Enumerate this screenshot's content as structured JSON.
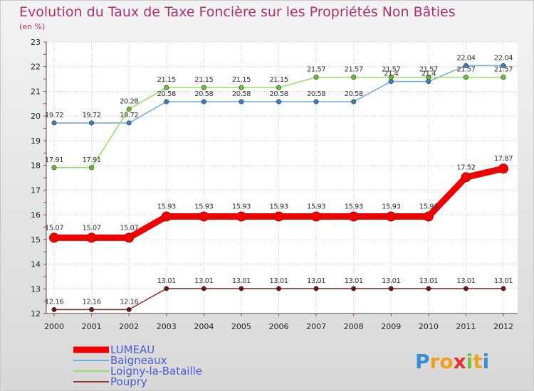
{
  "chart_data": {
    "type": "line",
    "title": "Evolution du Taux de Taxe Foncière sur les Propriétés Non Bâties",
    "subtitle": "(en %)",
    "xlabel": "",
    "ylabel": "",
    "x": [
      "2000",
      "2001",
      "2002",
      "2003",
      "2004",
      "2005",
      "2006",
      "2007",
      "2008",
      "2009",
      "2010",
      "2011",
      "2012"
    ],
    "yticks": [
      12,
      13,
      14,
      15,
      16,
      17,
      18,
      19,
      20,
      21,
      22,
      23
    ],
    "ylim": [
      12,
      23
    ],
    "grid": true,
    "legend_position": "bottom-left",
    "series": [
      {
        "name": "LUMEAU",
        "color": "#ee0000",
        "values": [
          15.07,
          15.07,
          15.07,
          15.93,
          15.93,
          15.93,
          15.93,
          15.93,
          15.93,
          15.93,
          15.93,
          17.52,
          17.87
        ],
        "labels": [
          "15.07",
          "15.07",
          "15.07",
          "15.93",
          "15.93",
          "15.93",
          "15.93",
          "15.93",
          "15.93",
          "15.93",
          "15.93",
          "17.52",
          "17.87"
        ]
      },
      {
        "name": "Baigneaux",
        "color": "#7aaad6",
        "marker": "#3a7fc0",
        "values": [
          19.72,
          19.72,
          19.72,
          20.58,
          20.58,
          20.58,
          20.58,
          20.58,
          20.58,
          21.4,
          21.4,
          22.04,
          22.04
        ],
        "labels": [
          "19.72",
          "19.72",
          "19.72",
          "20.58",
          "20.58",
          "20.58",
          "20.58",
          "20.58",
          "20.58",
          "21.4",
          "21.4",
          "22.04",
          "22.04"
        ]
      },
      {
        "name": "Loigny-la-Bataille",
        "color": "#9cdc6a",
        "marker": "#66c033",
        "values": [
          17.91,
          17.91,
          20.28,
          21.15,
          21.15,
          21.15,
          21.15,
          21.57,
          21.57,
          21.57,
          21.57,
          21.57,
          21.57
        ],
        "labels": [
          "17.91",
          "17.91",
          "20.28",
          "21.15",
          "21.15",
          "21.15",
          "21.15",
          "21.57",
          "21.57",
          "21.57",
          "21.57",
          "21.57",
          "21.57"
        ]
      },
      {
        "name": "Poupry",
        "color": "#8a3a3a",
        "marker": "#6a1515",
        "values": [
          12.16,
          12.16,
          12.16,
          13.01,
          13.01,
          13.01,
          13.01,
          13.01,
          13.01,
          13.01,
          13.01,
          13.01,
          13.01
        ],
        "labels": [
          "12.16",
          "12.16",
          "12.16",
          "13.01",
          "13.01",
          "13.01",
          "13.01",
          "13.01",
          "13.01",
          "13.01",
          "13.01",
          "13.01",
          "13.01"
        ]
      }
    ]
  },
  "logo": {
    "letters": [
      "P",
      "r",
      "o",
      "x",
      "i",
      "t",
      "i"
    ],
    "colors": [
      "#3a8fd0",
      "#f0a020",
      "#f0a020",
      "#e03030",
      "#7ac040",
      "#f0a020",
      "#3a8fd0"
    ]
  }
}
